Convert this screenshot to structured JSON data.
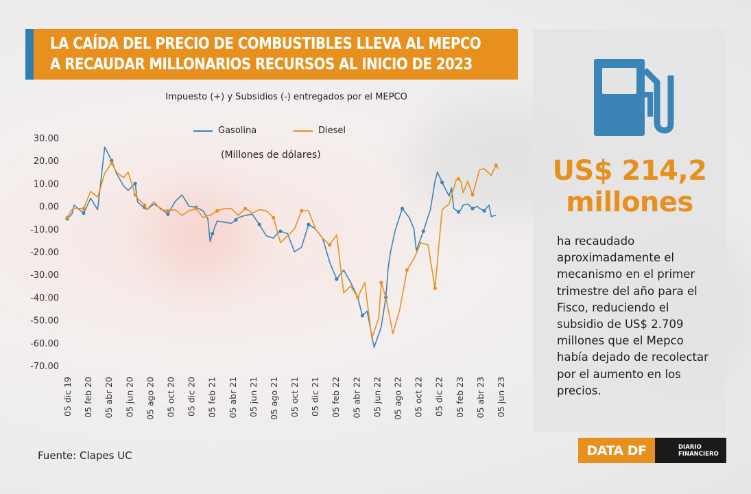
{
  "header": {
    "title_line1": "LA CAÍDA DEL PRECIO DE COMBUSTIBLES LLEVA AL MEPCO",
    "title_line2": "A RECAUDAR MILLONARIOS RECURSOS AL INICIO DE 2023"
  },
  "colors": {
    "gasolina": "#3a84b8",
    "diesel": "#e8901e",
    "accent": "#e8901e",
    "title_bar": "#2f7fb5"
  },
  "chart_data": {
    "type": "line",
    "title": "Impuesto (+) y Subsidios (-) entregados por el MEPCO",
    "units_note": "(Millones de dólares)",
    "ylim": [
      -70,
      30
    ],
    "yticks": [
      "30.00",
      "20.00",
      "10.00",
      "0.00",
      "-10.00",
      "-20.00",
      "-30.00",
      "-40.00",
      "-50.00",
      "-60.00",
      "-70.00"
    ],
    "ytick_values": [
      30,
      20,
      10,
      0,
      -10,
      -20,
      -30,
      -40,
      -50,
      -60,
      -70
    ],
    "x_range": [
      0,
      185
    ],
    "xticks": [
      "05 dic 19",
      "05 feb 20",
      "05 abr 20",
      "05 jun 20",
      "05 ago 20",
      "05 oct 20",
      "05 dic 20",
      "05 feb 21",
      "05 abr 21",
      "05 jun 21",
      "05 ago 21",
      "05 oct 21",
      "05 dic 21",
      "05 feb 22",
      "05 abr 22",
      "05 jun 22",
      "05 ago 22",
      "05 oct 22",
      "05 dic 22",
      "05 feb 23",
      "05 abr 23",
      "05 jun 23"
    ],
    "legend": [
      "Gasolina",
      "Diesel"
    ],
    "legend_position": "top-center",
    "series": [
      {
        "name": "Gasolina",
        "x": [
          0,
          2,
          3,
          4,
          7,
          10,
          13,
          16,
          19,
          21,
          24,
          26,
          29,
          30,
          31,
          32,
          33,
          34,
          37,
          40,
          43,
          46,
          49,
          52,
          55,
          58,
          60,
          61,
          62,
          64,
          67,
          70,
          72,
          73,
          76,
          79,
          82,
          85,
          88,
          90,
          91,
          94,
          97,
          100,
          103,
          106,
          109,
          112,
          115,
          118,
          121,
          124,
          126,
          128,
          131,
          134,
          136,
          137,
          138,
          140,
          143,
          146,
          148,
          149,
          152,
          155,
          157,
          158,
          160,
          163,
          164,
          165,
          167,
          168,
          169,
          171,
          173,
          174,
          175,
          176,
          178,
          180,
          181,
          183
        ],
        "y": [
          -5.5,
          -3.5,
          0.5,
          -0.5,
          -3,
          3.5,
          -1.5,
          26,
          20,
          14.5,
          9,
          7,
          10,
          2,
          1,
          0,
          -0.5,
          -1.5,
          1,
          -1,
          -3.5,
          2,
          5,
          0,
          -0.5,
          -2,
          -5.5,
          -15.5,
          -12,
          -6.5,
          -7,
          -7.5,
          -6,
          -5,
          -4,
          -3.5,
          -8,
          -13,
          -14,
          -11.5,
          -11,
          -12,
          -20,
          -18,
          -8,
          -10,
          -14,
          -24.5,
          -32,
          -28,
          -33.5,
          -40,
          -48,
          -46,
          -62,
          -53,
          -40,
          -27,
          -20,
          -10.5,
          -1,
          -5,
          -10,
          -19.5,
          -11,
          -1.5,
          11,
          15,
          10.5,
          4.5,
          8,
          -1,
          -2.5,
          -1.5,
          0.5,
          1,
          -1,
          -0.5,
          0,
          -1,
          -2,
          0.5,
          -4.5,
          -4
        ]
      },
      {
        "name": "Diesel",
        "x": [
          0,
          2,
          3,
          4,
          7,
          10,
          13,
          16,
          19,
          21,
          24,
          26,
          29,
          30,
          31,
          32,
          33,
          34,
          37,
          40,
          43,
          46,
          49,
          52,
          55,
          58,
          60,
          61,
          64,
          67,
          70,
          73,
          76,
          79,
          82,
          85,
          88,
          91,
          94,
          97,
          100,
          103,
          106,
          109,
          112,
          115,
          118,
          121,
          124,
          127,
          130,
          133,
          134,
          136,
          139,
          142,
          145,
          148,
          151,
          154,
          157,
          160,
          163,
          166,
          167,
          168,
          169,
          171,
          173,
          176,
          178,
          181,
          183,
          184
        ],
        "y": [
          -5,
          -1.5,
          -1,
          -1,
          -1,
          6.5,
          4,
          14.5,
          19,
          15,
          12.5,
          15,
          5,
          3.5,
          2.5,
          1.5,
          0.5,
          -1.5,
          2,
          -1.5,
          -2,
          -1.5,
          -4,
          -2,
          -1,
          -5,
          -4,
          -4,
          -2,
          -1,
          -1,
          -4,
          -1,
          -3,
          -1.5,
          -2,
          -5,
          -16,
          -13,
          -10,
          -2,
          -2,
          -10,
          -14,
          -17,
          -12.5,
          -38,
          -35,
          -40,
          -33.5,
          -58,
          -49,
          -33.5,
          -40,
          -56,
          -45,
          -28,
          -23,
          -16,
          -17,
          -36,
          -1.5,
          1,
          11.5,
          12,
          11,
          6,
          11,
          5,
          16,
          16.5,
          13.5,
          18,
          16.5
        ]
      }
    ]
  },
  "side": {
    "big_number_line1": "US$ 214,2",
    "big_number_line2": "millones",
    "description": "ha recaudado aproximadamente el mecanismo en el primer trimestre del año para el Fisco, reduciendo el subsidio de US$ 2.709 millones que el Mepco había dejado de recolectar por el aumento en los precios."
  },
  "footer": {
    "source": "Fuente:  Clapes UC",
    "logo_data": "DATA DF",
    "logo_df_line1": "DIARIO",
    "logo_df_line2": "FINANCIERO"
  }
}
